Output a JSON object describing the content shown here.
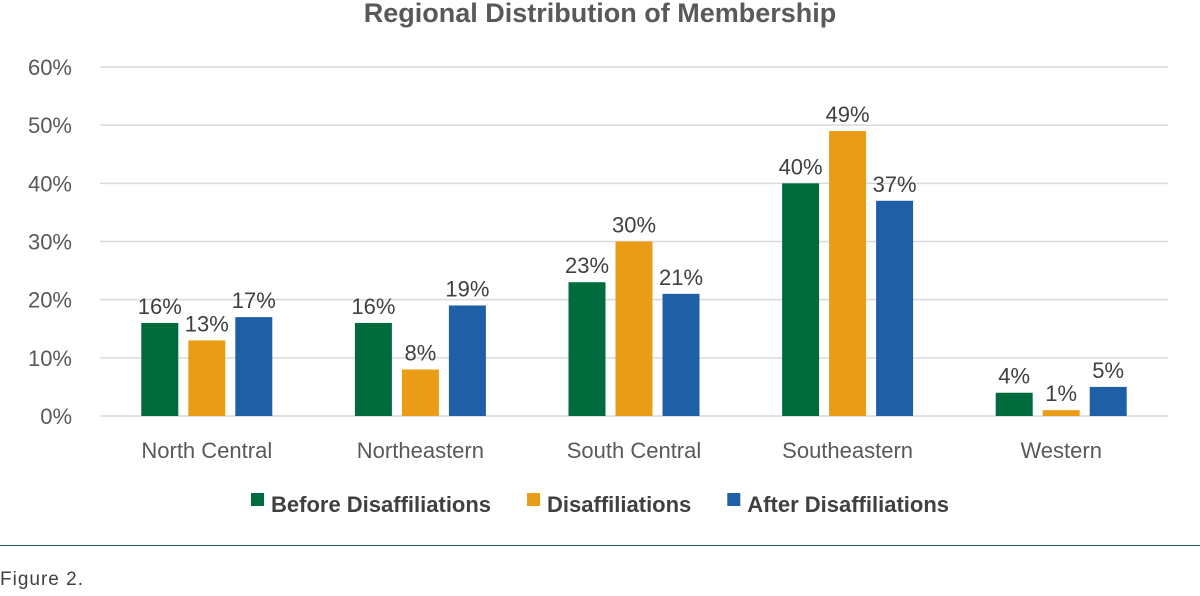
{
  "chart_data": {
    "type": "bar",
    "title": "Regional Distribution of Membership",
    "categories": [
      "North Central",
      "Northeastern",
      "South Central",
      "Southeastern",
      "Western"
    ],
    "series": [
      {
        "name": "Before Disaffiliations",
        "color": "#006b3c",
        "values": [
          16,
          16,
          23,
          40,
          4
        ],
        "labels": [
          "16%",
          "16%",
          "23%",
          "40%",
          "4%"
        ]
      },
      {
        "name": "Disaffiliations",
        "color": "#e99d17",
        "values": [
          13,
          8,
          30,
          49,
          1
        ],
        "labels": [
          "13%",
          "8%",
          "30%",
          "49%",
          "1%"
        ]
      },
      {
        "name": "After Disaffiliations",
        "color": "#1f5fa6",
        "values": [
          17,
          19,
          21,
          37,
          5
        ],
        "labels": [
          "17%",
          "19%",
          "21%",
          "37%",
          "5%"
        ]
      }
    ],
    "ylim": [
      0,
      60
    ],
    "yticks": [
      "0%",
      "10%",
      "20%",
      "30%",
      "40%",
      "50%",
      "60%"
    ],
    "grid": true,
    "legend": "bottom"
  },
  "caption": "Figure 2."
}
